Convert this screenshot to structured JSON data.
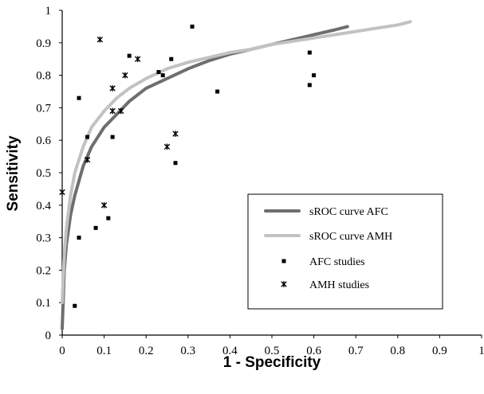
{
  "chart_data": {
    "type": "scatter",
    "xlabel": "1 - Specificity",
    "ylabel": "Sensitivity",
    "xlim": [
      0,
      1
    ],
    "ylim": [
      0,
      1
    ],
    "x_ticks": [
      "0",
      "0.1",
      "0.2",
      "0.3",
      "0.4",
      "0.5",
      "0.6",
      "0.7",
      "0.8",
      "0.9",
      "1"
    ],
    "y_ticks": [
      "0",
      "0.1",
      "0.2",
      "0.3",
      "0.4",
      "0.5",
      "0.6",
      "0.7",
      "0.8",
      "0.9",
      "1"
    ],
    "grid": false,
    "legend_position": "lower-right",
    "series": [
      {
        "name": "sROC curve AFC",
        "kind": "line",
        "color": "#6e6e6e",
        "points": [
          [
            0.0,
            0.02
          ],
          [
            0.005,
            0.2
          ],
          [
            0.01,
            0.28
          ],
          [
            0.02,
            0.37
          ],
          [
            0.03,
            0.43
          ],
          [
            0.05,
            0.52
          ],
          [
            0.07,
            0.58
          ],
          [
            0.1,
            0.64
          ],
          [
            0.13,
            0.68
          ],
          [
            0.16,
            0.72
          ],
          [
            0.2,
            0.76
          ],
          [
            0.25,
            0.79
          ],
          [
            0.3,
            0.82
          ],
          [
            0.35,
            0.845
          ],
          [
            0.4,
            0.865
          ],
          [
            0.45,
            0.88
          ],
          [
            0.5,
            0.895
          ],
          [
            0.55,
            0.91
          ],
          [
            0.6,
            0.925
          ],
          [
            0.65,
            0.94
          ],
          [
            0.68,
            0.95
          ]
        ]
      },
      {
        "name": "sROC curve AMH",
        "kind": "line",
        "color": "#c2c2c2",
        "points": [
          [
            0.0,
            0.1
          ],
          [
            0.005,
            0.25
          ],
          [
            0.01,
            0.33
          ],
          [
            0.02,
            0.43
          ],
          [
            0.03,
            0.5
          ],
          [
            0.05,
            0.58
          ],
          [
            0.07,
            0.64
          ],
          [
            0.1,
            0.69
          ],
          [
            0.13,
            0.73
          ],
          [
            0.16,
            0.76
          ],
          [
            0.2,
            0.79
          ],
          [
            0.25,
            0.82
          ],
          [
            0.3,
            0.84
          ],
          [
            0.35,
            0.855
          ],
          [
            0.4,
            0.87
          ],
          [
            0.45,
            0.88
          ],
          [
            0.5,
            0.895
          ],
          [
            0.55,
            0.905
          ],
          [
            0.6,
            0.915
          ],
          [
            0.65,
            0.925
          ],
          [
            0.7,
            0.935
          ],
          [
            0.75,
            0.945
          ],
          [
            0.8,
            0.955
          ],
          [
            0.83,
            0.965
          ]
        ]
      },
      {
        "name": "AFC studies",
        "kind": "square-marker",
        "color": "#000000",
        "points": [
          [
            0.03,
            0.09
          ],
          [
            0.04,
            0.3
          ],
          [
            0.04,
            0.73
          ],
          [
            0.06,
            0.61
          ],
          [
            0.08,
            0.33
          ],
          [
            0.11,
            0.36
          ],
          [
            0.12,
            0.61
          ],
          [
            0.16,
            0.86
          ],
          [
            0.23,
            0.81
          ],
          [
            0.24,
            0.8
          ],
          [
            0.26,
            0.85
          ],
          [
            0.27,
            0.53
          ],
          [
            0.31,
            0.95
          ],
          [
            0.37,
            0.75
          ],
          [
            0.59,
            0.77
          ],
          [
            0.59,
            0.87
          ],
          [
            0.6,
            0.8
          ]
        ]
      },
      {
        "name": "AMH studies",
        "kind": "star-marker",
        "color": "#000000",
        "points": [
          [
            0.0,
            0.44
          ],
          [
            0.06,
            0.54
          ],
          [
            0.09,
            0.91
          ],
          [
            0.1,
            0.4
          ],
          [
            0.12,
            0.69
          ],
          [
            0.12,
            0.76
          ],
          [
            0.14,
            0.69
          ],
          [
            0.15,
            0.8
          ],
          [
            0.18,
            0.85
          ],
          [
            0.25,
            0.58
          ],
          [
            0.27,
            0.62
          ]
        ]
      }
    ]
  }
}
